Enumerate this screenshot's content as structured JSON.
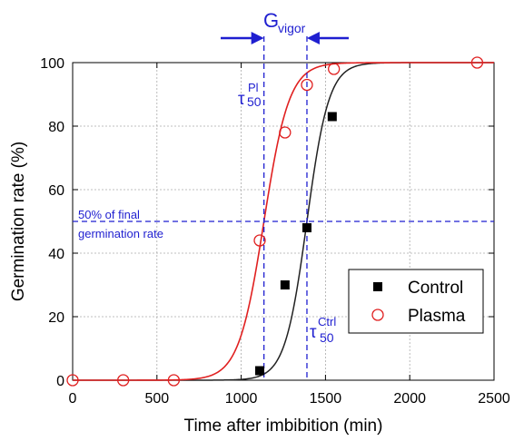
{
  "chart_data": {
    "type": "scatter",
    "xlabel": "Time after imbibition (min)",
    "ylabel": "Germination rate (%)",
    "xlim": [
      0,
      2500
    ],
    "ylim": [
      0,
      100
    ],
    "x_ticks": [
      "0",
      "500",
      "1000",
      "1500",
      "2000",
      "2500"
    ],
    "y_ticks": [
      "0",
      "20",
      "40",
      "60",
      "80",
      "100"
    ],
    "grid": true,
    "legend_position": "bottom-right",
    "series": [
      {
        "name": "Control",
        "marker": "filled-square",
        "color": "#000000",
        "curve_color": "#222222",
        "points": [
          {
            "x": 1110,
            "y": 3
          },
          {
            "x": 1260,
            "y": 30
          },
          {
            "x": 1390,
            "y": 48
          },
          {
            "x": 1540,
            "y": 83
          }
        ],
        "fit": {
          "t50": 1390,
          "width": 65,
          "max": 100
        }
      },
      {
        "name": "Plasma",
        "marker": "open-circle",
        "color": "#e02020",
        "curve_color": "#e02020",
        "points": [
          {
            "x": 0,
            "y": 0
          },
          {
            "x": 300,
            "y": 0
          },
          {
            "x": 600,
            "y": 0
          },
          {
            "x": 1110,
            "y": 44
          },
          {
            "x": 1260,
            "y": 78
          },
          {
            "x": 1390,
            "y": 93
          },
          {
            "x": 1550,
            "y": 98
          },
          {
            "x": 2400,
            "y": 100
          }
        ],
        "fit": {
          "t50": 1135,
          "width": 75,
          "max": 100
        }
      }
    ],
    "annotations": {
      "vigor": {
        "label": "G",
        "subscript": "vigor"
      },
      "tau_pl": {
        "label": "τ",
        "subscript": "50",
        "superscript": "Pl",
        "x": 1135
      },
      "tau_ctrl": {
        "label": "τ",
        "subscript": "50",
        "superscript": "Ctrl",
        "x": 1390
      },
      "half_line": {
        "y": 50,
        "text_line1": "50% of final",
        "text_line2": "germination rate"
      },
      "annotation_color": "#1f1fd0"
    }
  }
}
